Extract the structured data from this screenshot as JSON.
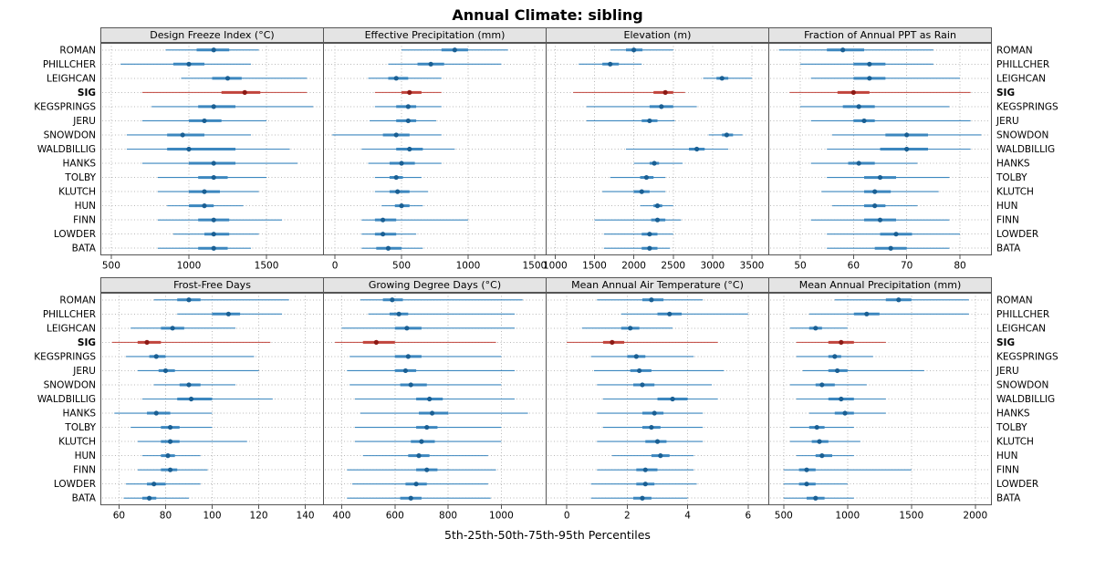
{
  "title": "Annual Climate: sibling",
  "caption": "5th-25th-50th-75th-95th Percentiles",
  "highlight_site": "SIG",
  "sites": [
    "ROMAN",
    "PHILLCHER",
    "LEIGHCAN",
    "SIG",
    "KEGSPRINGS",
    "JERU",
    "SNOWDON",
    "WALDBILLIG",
    "HANKS",
    "TOLBY",
    "KLUTCH",
    "HUN",
    "FINN",
    "LOWDER",
    "BATA"
  ],
  "colors": {
    "normal_line": "#3c87bf",
    "normal_dot": "#1a5f93",
    "highlight_line": "#c1443c",
    "highlight_dot": "#8c1a15",
    "grid": "#b8b8b8",
    "border": "#555555",
    "strip_bg": "#e4e4e4"
  },
  "chart_data": [
    {
      "type": "dot-interval",
      "title": "Design Freeze Index (°C)",
      "percentiles": [
        5,
        25,
        50,
        75,
        95
      ],
      "xlim": [
        430,
        1870
      ],
      "ticks": [
        500,
        1000,
        1500
      ],
      "values": {
        "ROMAN": [
          850,
          1050,
          1160,
          1260,
          1450
        ],
        "PHILLCHER": [
          560,
          900,
          1000,
          1100,
          1400
        ],
        "LEIGHCAN": [
          950,
          1150,
          1250,
          1340,
          1760
        ],
        "SIG": [
          700,
          1210,
          1360,
          1460,
          1760
        ],
        "KEGSPRINGS": [
          760,
          1060,
          1160,
          1300,
          1800
        ],
        "JERU": [
          700,
          1000,
          1100,
          1210,
          1500
        ],
        "SNOWDON": [
          600,
          860,
          960,
          1100,
          1400
        ],
        "WALDBILLIG": [
          600,
          860,
          1000,
          1300,
          1650
        ],
        "HANKS": [
          700,
          1000,
          1160,
          1300,
          1700
        ],
        "TOLBY": [
          800,
          1060,
          1160,
          1250,
          1500
        ],
        "KLUTCH": [
          800,
          1000,
          1100,
          1200,
          1450
        ],
        "HUN": [
          860,
          1000,
          1100,
          1160,
          1350
        ],
        "FINN": [
          800,
          1060,
          1160,
          1260,
          1600
        ],
        "LOWDER": [
          900,
          1100,
          1160,
          1260,
          1450
        ],
        "BATA": [
          800,
          1060,
          1160,
          1250,
          1400
        ]
      }
    },
    {
      "type": "dot-interval",
      "title": "Effective Precipitation (mm)",
      "percentiles": [
        5,
        25,
        50,
        75,
        95
      ],
      "xlim": [
        -90,
        1590
      ],
      "ticks": [
        0,
        500,
        1000,
        1500
      ],
      "values": {
        "ROMAN": [
          500,
          800,
          900,
          1000,
          1300
        ],
        "PHILLCHER": [
          400,
          620,
          720,
          820,
          1250
        ],
        "LEIGHCAN": [
          250,
          400,
          460,
          550,
          800
        ],
        "SIG": [
          300,
          500,
          560,
          650,
          800
        ],
        "KEGSPRINGS": [
          300,
          460,
          550,
          610,
          800
        ],
        "JERU": [
          260,
          460,
          550,
          610,
          760
        ],
        "SNOWDON": [
          -20,
          360,
          460,
          560,
          800
        ],
        "WALDBILLIG": [
          200,
          460,
          560,
          660,
          900
        ],
        "HANKS": [
          250,
          410,
          500,
          600,
          800
        ],
        "TOLBY": [
          300,
          410,
          460,
          510,
          650
        ],
        "KLUTCH": [
          300,
          410,
          470,
          560,
          700
        ],
        "HUN": [
          350,
          450,
          500,
          560,
          660
        ],
        "FINN": [
          200,
          300,
          360,
          460,
          1000
        ],
        "LOWDER": [
          200,
          300,
          360,
          460,
          610
        ],
        "BATA": [
          200,
          310,
          400,
          500,
          660
        ]
      }
    },
    {
      "type": "dot-interval",
      "title": "Elevation (m)",
      "percentiles": [
        5,
        25,
        50,
        75,
        95
      ],
      "xlim": [
        880,
        3720
      ],
      "ticks": [
        1000,
        1500,
        2000,
        2500,
        3000,
        3500
      ],
      "values": {
        "ROMAN": [
          1700,
          1900,
          2000,
          2110,
          2500
        ],
        "PHILLCHER": [
          1300,
          1600,
          1700,
          1810,
          2100
        ],
        "LEIGHCAN": [
          2880,
          3050,
          3120,
          3200,
          3500
        ],
        "SIG": [
          1230,
          2250,
          2400,
          2500,
          2650
        ],
        "KEGSPRINGS": [
          1400,
          2200,
          2350,
          2500,
          2800
        ],
        "JERU": [
          1400,
          2100,
          2200,
          2300,
          2520
        ],
        "SNOWDON": [
          2950,
          3120,
          3180,
          3260,
          3380
        ],
        "WALDBILLIG": [
          1900,
          2700,
          2800,
          2900,
          3200
        ],
        "HANKS": [
          2000,
          2200,
          2260,
          2320,
          2620
        ],
        "TOLBY": [
          1700,
          2080,
          2160,
          2250,
          2400
        ],
        "KLUTCH": [
          1600,
          2000,
          2100,
          2200,
          2400
        ],
        "HUN": [
          2080,
          2250,
          2300,
          2360,
          2500
        ],
        "FINN": [
          1500,
          2220,
          2300,
          2400,
          2600
        ],
        "LOWDER": [
          1620,
          2100,
          2200,
          2300,
          2500
        ],
        "BATA": [
          1620,
          2100,
          2200,
          2300,
          2460
        ]
      }
    },
    {
      "type": "dot-interval",
      "title": "Fraction of Annual PPT as Rain",
      "percentiles": [
        5,
        25,
        50,
        75,
        95
      ],
      "xlim": [
        44,
        86
      ],
      "ticks": [
        50,
        60,
        70,
        80
      ],
      "values": {
        "ROMAN": [
          46,
          55,
          58,
          62,
          75
        ],
        "PHILLCHER": [
          50,
          60,
          63,
          66,
          75
        ],
        "LEIGHCAN": [
          52,
          60,
          63,
          66,
          80
        ],
        "SIG": [
          48,
          57,
          60,
          63,
          82
        ],
        "KEGSPRINGS": [
          50,
          58,
          61,
          64,
          78
        ],
        "JERU": [
          52,
          60,
          62,
          64,
          82
        ],
        "SNOWDON": [
          56,
          66,
          70,
          74,
          84
        ],
        "WALDBILLIG": [
          55,
          65,
          70,
          74,
          82
        ],
        "HANKS": [
          52,
          59,
          61,
          64,
          72
        ],
        "TOLBY": [
          55,
          62,
          65,
          68,
          78
        ],
        "KLUTCH": [
          54,
          62,
          64,
          67,
          76
        ],
        "HUN": [
          56,
          62,
          64,
          66,
          72
        ],
        "FINN": [
          52,
          62,
          65,
          68,
          78
        ],
        "LOWDER": [
          55,
          65,
          68,
          71,
          80
        ],
        "BATA": [
          55,
          64,
          67,
          70,
          78
        ]
      }
    },
    {
      "type": "dot-interval",
      "title": "Frost-Free Days",
      "percentiles": [
        5,
        25,
        50,
        75,
        95
      ],
      "xlim": [
        52,
        148
      ],
      "ticks": [
        60,
        80,
        100,
        120,
        140
      ],
      "values": {
        "ROMAN": [
          75,
          85,
          90,
          95,
          133
        ],
        "PHILLCHER": [
          85,
          100,
          107,
          112,
          130
        ],
        "LEIGHCAN": [
          65,
          78,
          83,
          88,
          110
        ],
        "SIG": [
          57,
          68,
          72,
          78,
          125
        ],
        "KEGSPRINGS": [
          63,
          73,
          76,
          80,
          118
        ],
        "JERU": [
          68,
          77,
          80,
          84,
          120
        ],
        "SNOWDON": [
          75,
          86,
          90,
          95,
          110
        ],
        "WALDBILLIG": [
          70,
          85,
          91,
          100,
          126
        ],
        "HANKS": [
          58,
          72,
          76,
          82,
          100
        ],
        "TOLBY": [
          65,
          78,
          82,
          86,
          100
        ],
        "KLUTCH": [
          68,
          78,
          82,
          86,
          115
        ],
        "HUN": [
          70,
          78,
          81,
          84,
          95
        ],
        "FINN": [
          68,
          78,
          82,
          85,
          98
        ],
        "LOWDER": [
          63,
          72,
          75,
          80,
          95
        ],
        "BATA": [
          62,
          70,
          73,
          76,
          90
        ]
      }
    },
    {
      "type": "dot-interval",
      "title": "Growing Degree Days (°C)",
      "percentiles": [
        5,
        25,
        50,
        75,
        95
      ],
      "xlim": [
        330,
        1170
      ],
      "ticks": [
        400,
        600,
        800,
        1000
      ],
      "values": {
        "ROMAN": [
          470,
          555,
          590,
          630,
          1080
        ],
        "PHILLCHER": [
          500,
          580,
          615,
          650,
          1050
        ],
        "LEIGHCAN": [
          400,
          600,
          645,
          700,
          1050
        ],
        "SIG": [
          375,
          480,
          530,
          600,
          980
        ],
        "KEGSPRINGS": [
          430,
          600,
          650,
          700,
          1000
        ],
        "JERU": [
          420,
          600,
          640,
          680,
          1050
        ],
        "SNOWDON": [
          430,
          620,
          660,
          720,
          1000
        ],
        "WALDBILLIG": [
          450,
          680,
          730,
          780,
          1050
        ],
        "HANKS": [
          470,
          690,
          740,
          800,
          1100
        ],
        "TOLBY": [
          450,
          680,
          720,
          760,
          1000
        ],
        "KLUTCH": [
          450,
          660,
          700,
          750,
          1000
        ],
        "HUN": [
          480,
          650,
          690,
          730,
          950
        ],
        "FINN": [
          420,
          680,
          720,
          760,
          980
        ],
        "LOWDER": [
          440,
          640,
          680,
          720,
          950
        ],
        "BATA": [
          420,
          620,
          660,
          700,
          960
        ]
      }
    },
    {
      "type": "dot-interval",
      "title": "Mean Annual Air Temperature (°C)",
      "percentiles": [
        5,
        25,
        50,
        75,
        95
      ],
      "xlim": [
        -0.7,
        6.7
      ],
      "ticks": [
        0,
        2,
        4,
        6
      ],
      "values": {
        "ROMAN": [
          1.0,
          2.5,
          2.8,
          3.2,
          4.5
        ],
        "PHILLCHER": [
          1.8,
          3.0,
          3.4,
          3.8,
          6.0
        ],
        "LEIGHCAN": [
          0.5,
          1.8,
          2.1,
          2.4,
          3.5
        ],
        "SIG": [
          0.0,
          1.2,
          1.5,
          1.9,
          5.0
        ],
        "KEGSPRINGS": [
          0.8,
          2.0,
          2.3,
          2.6,
          4.2
        ],
        "JERU": [
          0.9,
          2.1,
          2.4,
          2.8,
          5.2
        ],
        "SNOWDON": [
          1.0,
          2.2,
          2.5,
          2.9,
          4.8
        ],
        "WALDBILLIG": [
          1.2,
          3.0,
          3.5,
          4.0,
          5.0
        ],
        "HANKS": [
          1.0,
          2.5,
          2.9,
          3.2,
          4.5
        ],
        "TOLBY": [
          1.2,
          2.5,
          2.8,
          3.1,
          4.5
        ],
        "KLUTCH": [
          1.0,
          2.6,
          3.0,
          3.3,
          4.5
        ],
        "HUN": [
          1.5,
          2.8,
          3.1,
          3.4,
          4.2
        ],
        "FINN": [
          1.0,
          2.3,
          2.6,
          3.0,
          4.2
        ],
        "LOWDER": [
          0.8,
          2.3,
          2.6,
          2.9,
          4.3
        ],
        "BATA": [
          0.8,
          2.2,
          2.5,
          2.8,
          4.0
        ]
      }
    },
    {
      "type": "dot-interval",
      "title": "Mean Annual Precipitation (mm)",
      "percentiles": [
        5,
        25,
        50,
        75,
        95
      ],
      "xlim": [
        380,
        2130
      ],
      "ticks": [
        500,
        1000,
        1500,
        2000
      ],
      "values": {
        "ROMAN": [
          900,
          1300,
          1400,
          1500,
          1950
        ],
        "PHILLCHER": [
          700,
          1050,
          1150,
          1250,
          1950
        ],
        "LEIGHCAN": [
          550,
          700,
          750,
          800,
          1000
        ],
        "SIG": [
          600,
          850,
          950,
          1050,
          1300
        ],
        "KEGSPRINGS": [
          600,
          850,
          900,
          950,
          1200
        ],
        "JERU": [
          650,
          850,
          920,
          1000,
          1600
        ],
        "SNOWDON": [
          550,
          750,
          800,
          900,
          1150
        ],
        "WALDBILLIG": [
          600,
          850,
          950,
          1050,
          1300
        ],
        "HANKS": [
          700,
          900,
          980,
          1050,
          1300
        ],
        "TOLBY": [
          550,
          700,
          760,
          820,
          1050
        ],
        "KLUTCH": [
          550,
          720,
          780,
          850,
          1100
        ],
        "HUN": [
          600,
          750,
          800,
          880,
          1050
        ],
        "FINN": [
          500,
          620,
          680,
          750,
          1500
        ],
        "LOWDER": [
          500,
          620,
          680,
          750,
          1000
        ],
        "BATA": [
          500,
          680,
          750,
          820,
          1050
        ]
      }
    }
  ],
  "layout": {
    "rows": [
      [
        0,
        1,
        2,
        3
      ],
      [
        4,
        5,
        6,
        7
      ]
    ]
  }
}
